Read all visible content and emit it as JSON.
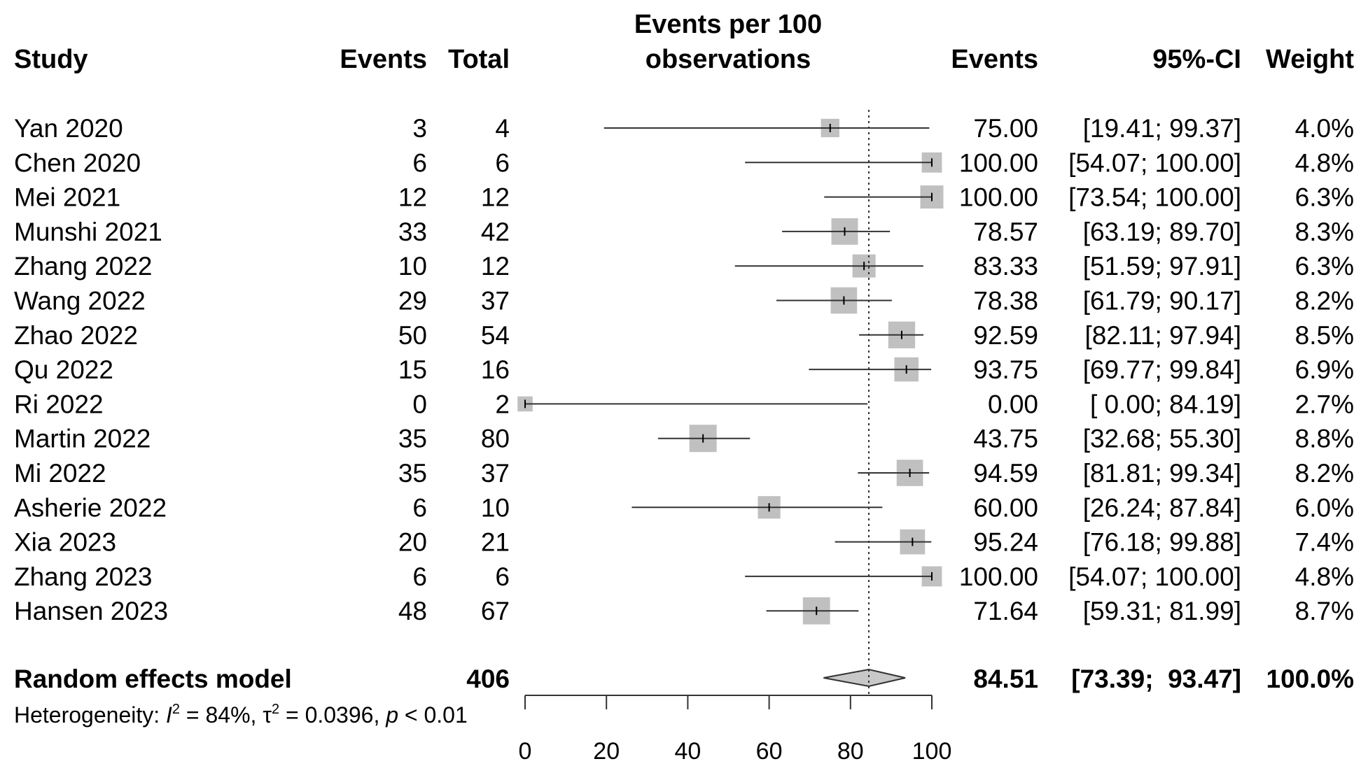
{
  "chart_data": {
    "type": "forest",
    "columns": {
      "study": "Study",
      "events": "Events",
      "total": "Total",
      "plot_title_line1": "Events per 100",
      "plot_title_line2": "observations",
      "estimate": "Events",
      "ci": "95%-CI",
      "weight": "Weight"
    },
    "studies": [
      {
        "study": "Yan 2020",
        "events": "3",
        "total": "4",
        "est": 75.0,
        "lo": 19.41,
        "hi": 99.37,
        "est_text": "75.00",
        "ci_text": "[19.41;  99.37]",
        "weight": 4.0,
        "weight_text": "4.0%"
      },
      {
        "study": "Chen 2020",
        "events": "6",
        "total": "6",
        "est": 100.0,
        "lo": 54.07,
        "hi": 100.0,
        "est_text": "100.00",
        "ci_text": "[54.07; 100.00]",
        "weight": 4.8,
        "weight_text": "4.8%"
      },
      {
        "study": "Mei 2021",
        "events": "12",
        "total": "12",
        "est": 100.0,
        "lo": 73.54,
        "hi": 100.0,
        "est_text": "100.00",
        "ci_text": "[73.54; 100.00]",
        "weight": 6.3,
        "weight_text": "6.3%"
      },
      {
        "study": "Munshi 2021",
        "events": "33",
        "total": "42",
        "est": 78.57,
        "lo": 63.19,
        "hi": 89.7,
        "est_text": "78.57",
        "ci_text": "[63.19;  89.70]",
        "weight": 8.3,
        "weight_text": "8.3%"
      },
      {
        "study": "Zhang 2022",
        "events": "10",
        "total": "12",
        "est": 83.33,
        "lo": 51.59,
        "hi": 97.91,
        "est_text": "83.33",
        "ci_text": "[51.59;  97.91]",
        "weight": 6.3,
        "weight_text": "6.3%"
      },
      {
        "study": "Wang 2022",
        "events": "29",
        "total": "37",
        "est": 78.38,
        "lo": 61.79,
        "hi": 90.17,
        "est_text": "78.38",
        "ci_text": "[61.79;  90.17]",
        "weight": 8.2,
        "weight_text": "8.2%"
      },
      {
        "study": "Zhao 2022",
        "events": "50",
        "total": "54",
        "est": 92.59,
        "lo": 82.11,
        "hi": 97.94,
        "est_text": "92.59",
        "ci_text": "[82.11;  97.94]",
        "weight": 8.5,
        "weight_text": "8.5%"
      },
      {
        "study": "Qu 2022",
        "events": "15",
        "total": "16",
        "est": 93.75,
        "lo": 69.77,
        "hi": 99.84,
        "est_text": "93.75",
        "ci_text": "[69.77;  99.84]",
        "weight": 6.9,
        "weight_text": "6.9%"
      },
      {
        "study": "Ri 2022",
        "events": "0",
        "total": "2",
        "est": 0.0,
        "lo": 0.0,
        "hi": 84.19,
        "est_text": "0.00",
        "ci_text": "[ 0.00;  84.19]",
        "weight": 2.7,
        "weight_text": "2.7%"
      },
      {
        "study": "Martin 2022",
        "events": "35",
        "total": "80",
        "est": 43.75,
        "lo": 32.68,
        "hi": 55.3,
        "est_text": "43.75",
        "ci_text": "[32.68;  55.30]",
        "weight": 8.8,
        "weight_text": "8.8%"
      },
      {
        "study": "Mi 2022",
        "events": "35",
        "total": "37",
        "est": 94.59,
        "lo": 81.81,
        "hi": 99.34,
        "est_text": "94.59",
        "ci_text": "[81.81;  99.34]",
        "weight": 8.2,
        "weight_text": "8.2%"
      },
      {
        "study": "Asherie 2022",
        "events": "6",
        "total": "10",
        "est": 60.0,
        "lo": 26.24,
        "hi": 87.84,
        "est_text": "60.00",
        "ci_text": "[26.24;  87.84]",
        "weight": 6.0,
        "weight_text": "6.0%"
      },
      {
        "study": "Xia 2023",
        "events": "20",
        "total": "21",
        "est": 95.24,
        "lo": 76.18,
        "hi": 99.88,
        "est_text": "95.24",
        "ci_text": "[76.18;  99.88]",
        "weight": 7.4,
        "weight_text": "7.4%"
      },
      {
        "study": "Zhang 2023",
        "events": "6",
        "total": "6",
        "est": 100.0,
        "lo": 54.07,
        "hi": 100.0,
        "est_text": "100.00",
        "ci_text": "[54.07; 100.00]",
        "weight": 4.8,
        "weight_text": "4.8%"
      },
      {
        "study": "Hansen 2023",
        "events": "48",
        "total": "67",
        "est": 71.64,
        "lo": 59.31,
        "hi": 81.99,
        "est_text": "71.64",
        "ci_text": "[59.31;  81.99]",
        "weight": 8.7,
        "weight_text": "8.7%"
      }
    ],
    "summary": {
      "label": "Random effects model",
      "total": "406",
      "est": 84.51,
      "lo": 73.39,
      "hi": 93.47,
      "est_text": "84.51",
      "ci_text": "[73.39;  93.47]",
      "weight_text": "100.0%"
    },
    "heterogeneity": {
      "prefix": "Heterogeneity: ",
      "i2_symbol": "I",
      "sup": "2",
      "i2_value": " = 84%, ",
      "tau_symbol": "τ",
      "tau_value": " = 0.0396, ",
      "p_symbol": "p",
      "p_value": " < 0.01"
    },
    "x_axis": {
      "range": [
        0,
        100
      ],
      "ticks": [
        0,
        20,
        40,
        60,
        80,
        100
      ],
      "tick_labels": [
        "0",
        "20",
        "40",
        "60",
        "80",
        "100"
      ]
    },
    "reference_line": 84.51,
    "colors": {
      "box": "#c0c0c0",
      "diamond": "#c8c8c8",
      "line": "#333333"
    }
  }
}
